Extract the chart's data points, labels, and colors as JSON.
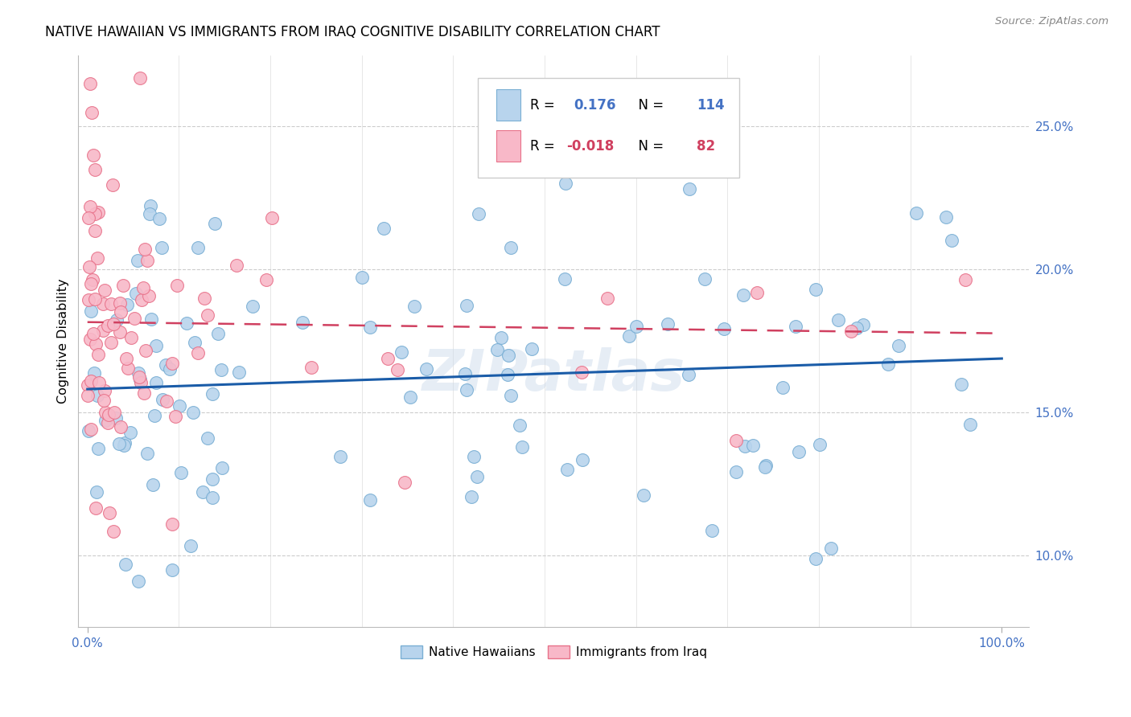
{
  "title": "NATIVE HAWAIIAN VS IMMIGRANTS FROM IRAQ COGNITIVE DISABILITY CORRELATION CHART",
  "source": "Source: ZipAtlas.com",
  "ylabel": "Cognitive Disability",
  "r_blue": 0.176,
  "n_blue": 114,
  "r_pink": -0.018,
  "n_pink": 82,
  "blue_color": "#b8d4ed",
  "blue_edge": "#7aafd4",
  "pink_color": "#f8b8c8",
  "pink_edge": "#e8728a",
  "blue_line_color": "#1a5ca8",
  "pink_line_color": "#d04060",
  "watermark": "ZIPatlas",
  "legend_label_blue": "Native Hawaiians",
  "legend_label_pink": "Immigrants from Iraq",
  "ylim_low": 7.5,
  "ylim_high": 27.5,
  "xlim_low": -1,
  "xlim_high": 103
}
